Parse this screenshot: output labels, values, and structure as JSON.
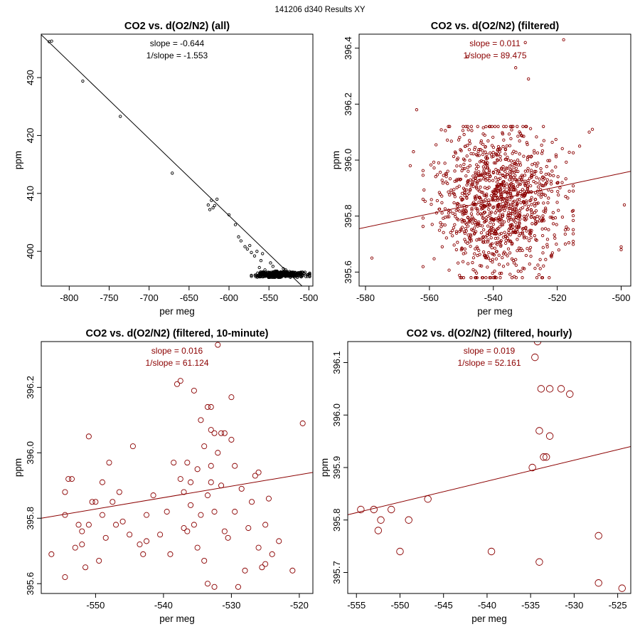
{
  "page": {
    "suptitle": "141206   d340   Results XY"
  },
  "chart_data": [
    {
      "type": "scatter",
      "title": "CO2 vs. d(O2/N2) (all)",
      "xlabel": "per meg",
      "ylabel": "ppm",
      "xlim": [
        -835,
        -495
      ],
      "ylim": [
        394.0,
        437.5
      ],
      "xticks": [
        -800,
        -750,
        -700,
        -650,
        -600,
        -550,
        -500
      ],
      "yticks": [
        400,
        410,
        420,
        430
      ],
      "color": "#000000",
      "marker_radius_scale": 1,
      "slope_label": "slope = -0.644",
      "inv_slope_label": "1/slope = -1.553",
      "stat_color": "#000000",
      "line_color": "#000000",
      "fit_line": {
        "x1": -835,
        "y1": 437.4,
        "x2": -495,
        "y2": 392.2
      },
      "points": [
        [
          -825,
          436.2
        ],
        [
          -822,
          436.3
        ],
        [
          -783,
          429.4
        ],
        [
          -736,
          423.3
        ],
        [
          -671,
          413.5
        ],
        [
          -626,
          408.0
        ],
        [
          -624,
          407.2
        ],
        [
          -622,
          408.8
        ],
        [
          -620,
          407.5
        ],
        [
          -618,
          407.9
        ],
        [
          -615,
          409.0
        ],
        [
          -600,
          406.3
        ],
        [
          -592,
          404.6
        ],
        [
          -588,
          402.5
        ],
        [
          -585,
          401.8
        ],
        [
          -580,
          400.8
        ],
        [
          -577,
          400.4
        ],
        [
          -574,
          401.0
        ],
        [
          -572,
          399.8
        ],
        [
          -568,
          399.2
        ],
        [
          -565,
          400.0
        ],
        [
          -562,
          397.2
        ],
        [
          -560,
          398.4
        ],
        [
          -558,
          399.6
        ],
        [
          -555,
          396.8
        ],
        [
          -552,
          396.0
        ],
        [
          -548,
          398.0
        ],
        [
          -545,
          397.4
        ],
        [
          -542,
          396.6
        ],
        [
          -540,
          396.6
        ],
        [
          -538,
          396.2
        ],
        [
          -535,
          396.4
        ],
        [
          -532,
          397.0
        ],
        [
          -529,
          396.8
        ],
        [
          -526,
          396.1
        ]
      ],
      "cluster": {
        "n": 450,
        "x_range": [
          -572,
          -499
        ],
        "y_range": [
          395.5,
          396.5
        ],
        "seed": 7
      }
    },
    {
      "type": "scatter",
      "title": "CO2 vs. d(O2/N2) (filtered)",
      "xlabel": "per meg",
      "ylabel": "ppm",
      "xlim": [
        -582,
        -497
      ],
      "ylim": [
        395.55,
        396.45
      ],
      "xticks": [
        -580,
        -560,
        -540,
        -520,
        -500
      ],
      "yticks": [
        395.6,
        395.8,
        396.0,
        396.2,
        396.4
      ],
      "color": "#8b0000",
      "marker_radius_scale": 1,
      "slope_label": "slope = 0.011",
      "inv_slope_label": "1/slope = 89.475",
      "stat_color": "#8b0000",
      "line_color": "#8b0000",
      "fit_line": {
        "x1": -582,
        "y1": 395.755,
        "x2": -497,
        "y2": 395.96
      },
      "points": [
        [
          -578,
          395.65
        ],
        [
          -566,
          395.98
        ],
        [
          -565,
          396.03
        ],
        [
          -564,
          396.18
        ],
        [
          -548,
          396.37
        ],
        [
          -530,
          396.42
        ],
        [
          -533,
          396.33
        ],
        [
          -529,
          396.29
        ],
        [
          -518,
          396.43
        ],
        [
          -509,
          396.11
        ],
        [
          -510,
          396.1
        ],
        [
          -513,
          396.05
        ],
        [
          -499,
          395.84
        ],
        [
          -500,
          395.69
        ],
        [
          -500,
          395.68
        ]
      ],
      "cluster": {
        "n": 1150,
        "x_range": [
          -562,
          -515
        ],
        "y_range": [
          395.58,
          396.12
        ],
        "center_x": -538,
        "seed": 19
      }
    },
    {
      "type": "scatter",
      "title": "CO2 vs. d(O2/N2) (filtered, 10-minute)",
      "xlabel": "per meg",
      "ylabel": "ppm",
      "xlim": [
        -558,
        -518
      ],
      "ylim": [
        395.57,
        396.34
      ],
      "xticks": [
        -550,
        -540,
        -530,
        -520
      ],
      "yticks": [
        395.6,
        395.8,
        396.0,
        396.2
      ],
      "color": "#8b0000",
      "marker_radius_scale": 2.1,
      "slope_label": "slope = 0.016",
      "inv_slope_label": "1/slope = 61.124",
      "stat_color": "#8b0000",
      "line_color": "#8b0000",
      "fit_line": {
        "x1": -558,
        "y1": 395.8,
        "x2": -518,
        "y2": 395.94
      },
      "points": [
        [
          -556.5,
          395.69
        ],
        [
          -554.5,
          395.62
        ],
        [
          -554.5,
          395.81
        ],
        [
          -554.5,
          395.88
        ],
        [
          -554.0,
          395.92
        ],
        [
          -553.5,
          395.92
        ],
        [
          -553.0,
          395.71
        ],
        [
          -552.5,
          395.78
        ],
        [
          -552.0,
          395.76
        ],
        [
          -552.0,
          395.72
        ],
        [
          -551.5,
          395.65
        ],
        [
          -551.0,
          396.05
        ],
        [
          -551.0,
          395.78
        ],
        [
          -550.5,
          395.85
        ],
        [
          -550.0,
          395.85
        ],
        [
          -549.5,
          395.67
        ],
        [
          -549.0,
          395.91
        ],
        [
          -549.0,
          395.81
        ],
        [
          -548.5,
          395.74
        ],
        [
          -548.0,
          395.97
        ],
        [
          -547.5,
          395.85
        ],
        [
          -547.0,
          395.78
        ],
        [
          -546.5,
          395.88
        ],
        [
          -546.0,
          395.79
        ],
        [
          -545.0,
          395.75
        ],
        [
          -544.5,
          396.02
        ],
        [
          -543.5,
          395.72
        ],
        [
          -543.0,
          395.69
        ],
        [
          -542.5,
          395.73
        ],
        [
          -542.5,
          395.81
        ],
        [
          -541.5,
          395.87
        ],
        [
          -540.5,
          395.75
        ],
        [
          -539.5,
          395.82
        ],
        [
          -539.0,
          395.69
        ],
        [
          -538.5,
          395.97
        ],
        [
          -538.0,
          396.21
        ],
        [
          -537.5,
          396.22
        ],
        [
          -537.5,
          395.92
        ],
        [
          -537.0,
          395.77
        ],
        [
          -537.0,
          395.88
        ],
        [
          -536.5,
          395.97
        ],
        [
          -536.5,
          395.76
        ],
        [
          -536.0,
          395.84
        ],
        [
          -536.0,
          395.91
        ],
        [
          -535.5,
          395.78
        ],
        [
          -535.5,
          396.19
        ],
        [
          -535.0,
          395.95
        ],
        [
          -535.0,
          395.71
        ],
        [
          -534.5,
          396.1
        ],
        [
          -534.5,
          395.81
        ],
        [
          -534.0,
          396.02
        ],
        [
          -534.0,
          395.67
        ],
        [
          -533.5,
          396.14
        ],
        [
          -533.5,
          395.87
        ],
        [
          -533.5,
          395.6
        ],
        [
          -533.0,
          396.14
        ],
        [
          -533.0,
          396.07
        ],
        [
          -533.0,
          395.96
        ],
        [
          -533.0,
          395.91
        ],
        [
          -532.5,
          396.06
        ],
        [
          -532.5,
          395.82
        ],
        [
          -532.5,
          395.59
        ],
        [
          -532.0,
          396.33
        ],
        [
          -532.0,
          396.0
        ],
        [
          -531.5,
          396.06
        ],
        [
          -531.5,
          395.9
        ],
        [
          -531.0,
          396.06
        ],
        [
          -531.0,
          395.76
        ],
        [
          -530.5,
          395.74
        ],
        [
          -530.0,
          396.17
        ],
        [
          -530.0,
          396.04
        ],
        [
          -529.5,
          395.96
        ],
        [
          -529.5,
          395.82
        ],
        [
          -529.0,
          395.59
        ],
        [
          -528.5,
          395.89
        ],
        [
          -528.0,
          395.64
        ],
        [
          -527.5,
          395.77
        ],
        [
          -527.0,
          395.85
        ],
        [
          -526.5,
          395.93
        ],
        [
          -526.0,
          395.94
        ],
        [
          -526.0,
          395.71
        ],
        [
          -525.5,
          395.65
        ],
        [
          -525.0,
          395.66
        ],
        [
          -525.0,
          395.78
        ],
        [
          -524.5,
          395.86
        ],
        [
          -524.0,
          395.69
        ],
        [
          -523.0,
          395.73
        ],
        [
          -521.0,
          395.64
        ],
        [
          -519.5,
          396.09
        ]
      ]
    },
    {
      "type": "scatter",
      "title": "CO2 vs. d(O2/N2) (filtered, hourly)",
      "xlabel": "per meg",
      "ylabel": "ppm",
      "xlim": [
        -556,
        -523.5
      ],
      "ylim": [
        395.66,
        396.14
      ],
      "xticks": [
        -555,
        -550,
        -545,
        -540,
        -535,
        -530,
        -525
      ],
      "yticks": [
        395.7,
        395.8,
        395.9,
        396.0,
        396.1
      ],
      "color": "#8b0000",
      "marker_radius_scale": 2.8,
      "slope_label": "slope = 0.019",
      "inv_slope_label": "1/slope = 52.161",
      "stat_color": "#8b0000",
      "line_color": "#8b0000",
      "fit_line": {
        "x1": -556,
        "y1": 395.81,
        "x2": -523.5,
        "y2": 395.94
      },
      "points": [
        [
          -554.5,
          395.82
        ],
        [
          -553.0,
          395.82
        ],
        [
          -552.5,
          395.78
        ],
        [
          -552.2,
          395.8
        ],
        [
          -551.0,
          395.82
        ],
        [
          -550.0,
          395.74
        ],
        [
          -549.0,
          395.8
        ],
        [
          -546.8,
          395.84
        ],
        [
          -539.5,
          395.74
        ],
        [
          -534.8,
          395.9
        ],
        [
          -534.5,
          396.11
        ],
        [
          -534.2,
          396.14
        ],
        [
          -534.0,
          395.72
        ],
        [
          -534.0,
          395.97
        ],
        [
          -533.8,
          396.05
        ],
        [
          -533.5,
          395.92
        ],
        [
          -533.2,
          395.92
        ],
        [
          -532.8,
          396.05
        ],
        [
          -532.8,
          395.96
        ],
        [
          -531.5,
          396.05
        ],
        [
          -530.5,
          396.04
        ],
        [
          -527.2,
          395.77
        ],
        [
          -527.2,
          395.68
        ],
        [
          -524.5,
          395.67
        ]
      ]
    }
  ]
}
